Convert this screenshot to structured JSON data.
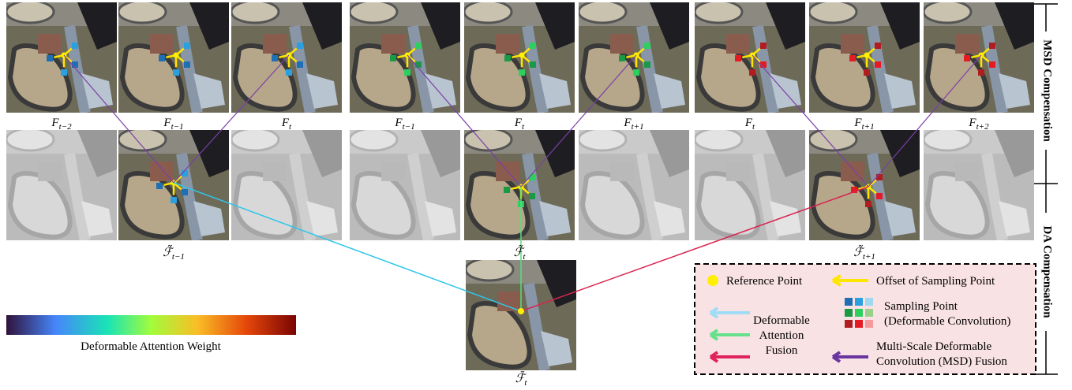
{
  "top_row": [
    {
      "main": "F",
      "sub": "t−2"
    },
    {
      "main": "F",
      "sub": "t−1"
    },
    {
      "main": "F",
      "sub": "t"
    },
    {
      "main": "F",
      "sub": "t−1"
    },
    {
      "main": "F",
      "sub": "t"
    },
    {
      "main": "F",
      "sub": "t+1"
    },
    {
      "main": "F",
      "sub": "t"
    },
    {
      "main": "F",
      "sub": "t+1"
    },
    {
      "main": "F",
      "sub": "t+2"
    }
  ],
  "middle_row": [
    {
      "main": "ℱ̃",
      "sub": "t−1"
    },
    {
      "main": "ℱ̃",
      "sub": "t"
    },
    {
      "main": "ℱ̃",
      "sub": "t+1"
    }
  ],
  "bottom": {
    "main": "ℱ̄",
    "sub": "t"
  },
  "side_labels": [
    "MSD Compensation",
    "DA Compensation"
  ],
  "colorbar_label": "Deformable Attention Weight",
  "legend": {
    "reference_point": "Reference Point",
    "offset": "Offset of Sampling Point",
    "sampling_point": [
      "Sampling Point",
      "(Deformable Convolution)"
    ],
    "da_fusion": [
      "Deformable",
      "Attention",
      "Fusion"
    ],
    "msd_fusion": [
      "Multi-Scale Deformable",
      "Convolution (MSD) Fusion"
    ]
  }
}
